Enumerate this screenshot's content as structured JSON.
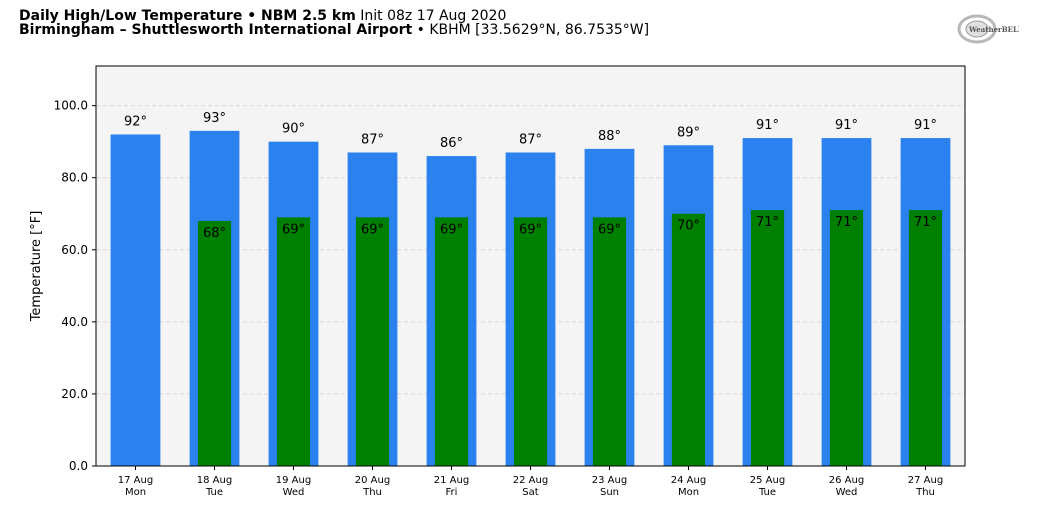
{
  "header": {
    "title_bold": "Daily High/Low Temperature • NBM 2.5 km",
    "init_text": "Init 08z 17 Aug 2020",
    "location_bold": "Birmingham – Shuttlesworth International Airport",
    "station_text": "• KBHM [33.5629°N, 86.7535°W]",
    "logo_text": "WeatherBELL"
  },
  "colors": {
    "high_bar": "#2b81ee",
    "low_bar": "#008000",
    "plot_bg": "#f4f4f4",
    "grid": "#d8d8d8"
  },
  "chart_data": {
    "type": "bar",
    "ylabel": "Temperature [°F]",
    "ylim": [
      0,
      111
    ],
    "yticks": [
      "0.0",
      "20.0",
      "40.0",
      "60.0",
      "80.0",
      "100.0"
    ],
    "ytick_values": [
      0,
      20,
      40,
      60,
      80,
      100
    ],
    "grid": true,
    "categories": [
      {
        "date": "17 Aug",
        "day": "Mon"
      },
      {
        "date": "18 Aug",
        "day": "Tue"
      },
      {
        "date": "19 Aug",
        "day": "Wed"
      },
      {
        "date": "20 Aug",
        "day": "Thu"
      },
      {
        "date": "21 Aug",
        "day": "Fri"
      },
      {
        "date": "22 Aug",
        "day": "Sat"
      },
      {
        "date": "23 Aug",
        "day": "Sun"
      },
      {
        "date": "24 Aug",
        "day": "Mon"
      },
      {
        "date": "25 Aug",
        "day": "Tue"
      },
      {
        "date": "26 Aug",
        "day": "Wed"
      },
      {
        "date": "27 Aug",
        "day": "Thu"
      }
    ],
    "series": [
      {
        "values": [
          92,
          93,
          90,
          87,
          86,
          87,
          88,
          89,
          91,
          91,
          91
        ],
        "labels": [
          "92°",
          "93°",
          "90°",
          "87°",
          "86°",
          "87°",
          "88°",
          "89°",
          "91°",
          "91°",
          "91°"
        ]
      },
      {
        "values": [
          null,
          68,
          69,
          69,
          69,
          69,
          69,
          70,
          71,
          71,
          71
        ],
        "labels": [
          "",
          "68°",
          "69°",
          "69°",
          "69°",
          "69°",
          "69°",
          "70°",
          "71°",
          "71°",
          "71°"
        ]
      }
    ]
  }
}
